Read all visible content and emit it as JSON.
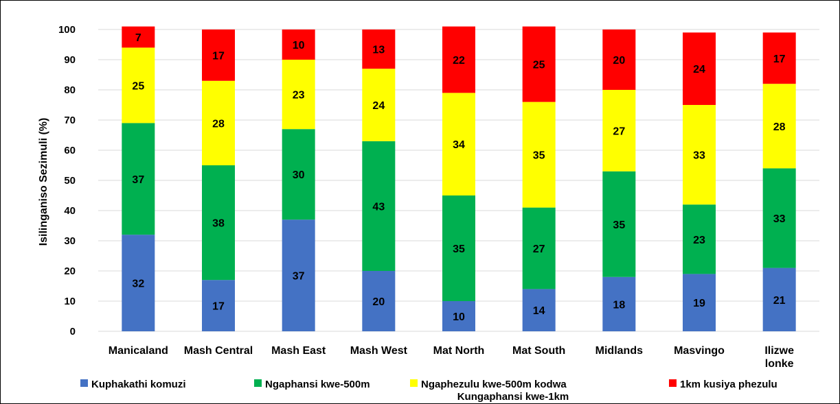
{
  "chart_data": {
    "type": "bar",
    "stacked": true,
    "title": "",
    "xlabel": "",
    "ylabel": "Isilinganiso Sezimuli (%)",
    "ylim": [
      0,
      100
    ],
    "yticks": [
      "0",
      "10",
      "20",
      "30",
      "40",
      "50",
      "60",
      "70",
      "80",
      "90",
      "100"
    ],
    "grid": true,
    "legend_position": "bottom",
    "categories": [
      [
        "Manicaland"
      ],
      [
        "Mash Central"
      ],
      [
        "Mash East"
      ],
      [
        "Mash West"
      ],
      [
        "Mat North"
      ],
      [
        "Mat South"
      ],
      [
        "Midlands"
      ],
      [
        "Masvingo"
      ],
      [
        "Ilizwe",
        "lonke"
      ]
    ],
    "series": [
      {
        "name": [
          "Kuphakathi komuzi"
        ],
        "color": "#4472C4",
        "values": [
          32,
          17,
          37,
          20,
          10,
          14,
          18,
          19,
          21
        ],
        "labels": [
          "32",
          "17",
          "37",
          "20",
          "10",
          "14",
          "18",
          "19",
          "21"
        ]
      },
      {
        "name": [
          "Ngaphansi kwe-500m"
        ],
        "color": "#00B050",
        "values": [
          37,
          38,
          30,
          43,
          35,
          27,
          35,
          23,
          33
        ],
        "labels": [
          "37",
          "38",
          "30",
          "43",
          "35",
          "27",
          "35",
          "23",
          "33"
        ]
      },
      {
        "name": [
          "Ngaphezulu kwe-500m kodwa",
          "Kungaphansi kwe-1km"
        ],
        "color": "#FFFF00",
        "values": [
          25,
          28,
          23,
          24,
          34,
          35,
          27,
          33,
          28
        ],
        "labels": [
          "25",
          "28",
          "23",
          "24",
          "34",
          "35",
          "27",
          "33",
          "28"
        ]
      },
      {
        "name": [
          "1km kusiya phezulu"
        ],
        "color": "#FF0000",
        "values": [
          7,
          17,
          10,
          13,
          22,
          25,
          20,
          24,
          17
        ],
        "labels": [
          "7",
          "17",
          "10",
          "13",
          "22",
          "25",
          "20",
          "24",
          "17"
        ]
      }
    ]
  }
}
